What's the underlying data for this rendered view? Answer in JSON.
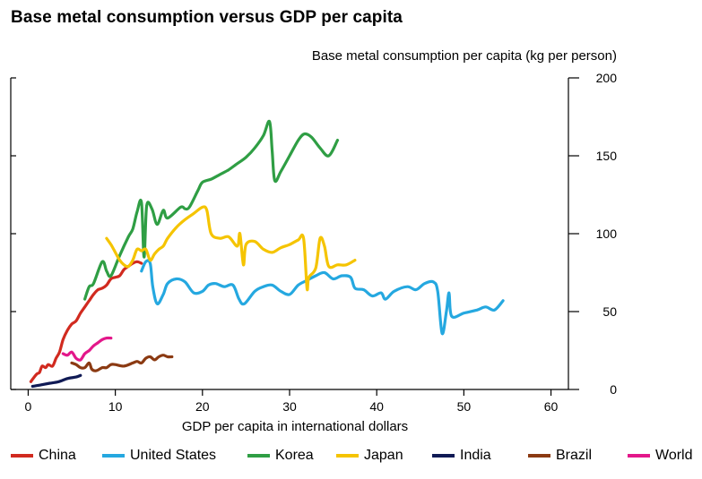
{
  "chart_data": {
    "type": "line",
    "title": "Base metal consumption versus GDP per capita",
    "xlabel": "GDP per capita in international dollars",
    "ylabel": "Base metal consumption per capita (kg per person)",
    "xlim": [
      -2,
      62
    ],
    "ylim": [
      0,
      200
    ],
    "xticks": [
      0,
      10,
      20,
      30,
      40,
      50,
      60
    ],
    "yticks": [
      0,
      50,
      100,
      150,
      200
    ],
    "y_axis_side": "right",
    "legend_position": "bottom",
    "series": [
      {
        "name": "China",
        "color": "#d12a1f",
        "points": [
          [
            0.3,
            5
          ],
          [
            0.7,
            8
          ],
          [
            1.0,
            10
          ],
          [
            1.3,
            11
          ],
          [
            1.6,
            15
          ],
          [
            2.0,
            14
          ],
          [
            2.3,
            16
          ],
          [
            2.8,
            15
          ],
          [
            3.2,
            20
          ],
          [
            3.6,
            24
          ],
          [
            4.0,
            32
          ],
          [
            4.5,
            38
          ],
          [
            5.0,
            42
          ],
          [
            5.5,
            44
          ],
          [
            6.0,
            49
          ],
          [
            6.5,
            53
          ],
          [
            7.0,
            57
          ],
          [
            7.5,
            61
          ],
          [
            8.0,
            64
          ],
          [
            8.5,
            65
          ],
          [
            9.0,
            67
          ],
          [
            9.5,
            71
          ],
          [
            10.0,
            72
          ],
          [
            10.5,
            73
          ],
          [
            11.0,
            77
          ],
          [
            11.5,
            79
          ],
          [
            12.0,
            81
          ],
          [
            12.5,
            82
          ],
          [
            13.0,
            81
          ]
        ]
      },
      {
        "name": "United States",
        "color": "#25a8e0",
        "points": [
          [
            13.0,
            76
          ],
          [
            13.5,
            82
          ],
          [
            14.0,
            81
          ],
          [
            14.3,
            66
          ],
          [
            14.8,
            55
          ],
          [
            15.5,
            61
          ],
          [
            16.0,
            68
          ],
          [
            17.0,
            71
          ],
          [
            18.0,
            69
          ],
          [
            19.0,
            62
          ],
          [
            20.0,
            63
          ],
          [
            20.7,
            67
          ],
          [
            21.5,
            68
          ],
          [
            22.5,
            66
          ],
          [
            23.5,
            67
          ],
          [
            24.2,
            58
          ],
          [
            24.8,
            55
          ],
          [
            26.0,
            63
          ],
          [
            27.0,
            66
          ],
          [
            28.0,
            67
          ],
          [
            29.0,
            63
          ],
          [
            30.0,
            61
          ],
          [
            31.0,
            67
          ],
          [
            32.0,
            70
          ],
          [
            33.0,
            73
          ],
          [
            34.0,
            75
          ],
          [
            35.0,
            71
          ],
          [
            36.0,
            73
          ],
          [
            37.0,
            72
          ],
          [
            37.5,
            65
          ],
          [
            38.5,
            64
          ],
          [
            39.5,
            60
          ],
          [
            40.5,
            62
          ],
          [
            41.0,
            58
          ],
          [
            42.0,
            63
          ],
          [
            43.5,
            66
          ],
          [
            44.5,
            64
          ],
          [
            45.5,
            68
          ],
          [
            46.5,
            69
          ],
          [
            47.0,
            63
          ],
          [
            47.5,
            36
          ],
          [
            48.0,
            50
          ],
          [
            48.3,
            62
          ],
          [
            48.6,
            47
          ],
          [
            50.0,
            49
          ],
          [
            51.5,
            51
          ],
          [
            52.5,
            53
          ],
          [
            53.5,
            51
          ],
          [
            54.5,
            57
          ]
        ]
      },
      {
        "name": "Korea",
        "color": "#2f9e44",
        "points": [
          [
            6.5,
            58
          ],
          [
            7.0,
            66
          ],
          [
            7.5,
            68
          ],
          [
            8.5,
            82
          ],
          [
            9.0,
            76
          ],
          [
            9.5,
            73
          ],
          [
            10.5,
            86
          ],
          [
            11.5,
            98
          ],
          [
            12.0,
            103
          ],
          [
            12.5,
            114
          ],
          [
            13.0,
            120
          ],
          [
            13.3,
            85
          ],
          [
            13.6,
            118
          ],
          [
            14.2,
            116
          ],
          [
            14.8,
            106
          ],
          [
            15.5,
            115
          ],
          [
            16.0,
            110
          ],
          [
            17.5,
            117
          ],
          [
            18.0,
            116
          ],
          [
            18.5,
            117
          ],
          [
            19.5,
            128
          ],
          [
            20.0,
            133
          ],
          [
            21.0,
            135
          ],
          [
            22.0,
            138
          ],
          [
            23.0,
            141
          ],
          [
            24.0,
            145
          ],
          [
            25.0,
            149
          ],
          [
            26.0,
            155
          ],
          [
            27.0,
            163
          ],
          [
            27.7,
            172
          ],
          [
            28.0,
            153
          ],
          [
            28.3,
            134
          ],
          [
            29.0,
            140
          ],
          [
            30.0,
            150
          ],
          [
            31.0,
            160
          ],
          [
            31.7,
            164
          ],
          [
            32.5,
            162
          ],
          [
            33.5,
            155
          ],
          [
            34.5,
            150
          ],
          [
            35.5,
            160
          ]
        ]
      },
      {
        "name": "Japan",
        "color": "#f5c400",
        "points": [
          [
            9.0,
            97
          ],
          [
            9.5,
            93
          ],
          [
            10.0,
            88
          ],
          [
            10.5,
            83
          ],
          [
            11.0,
            80
          ],
          [
            11.5,
            79
          ],
          [
            12.0,
            83
          ],
          [
            12.5,
            90
          ],
          [
            13.0,
            89
          ],
          [
            13.5,
            90
          ],
          [
            14.0,
            83
          ],
          [
            14.5,
            87
          ],
          [
            15.0,
            90
          ],
          [
            15.5,
            92
          ],
          [
            16.0,
            97
          ],
          [
            17.0,
            104
          ],
          [
            18.0,
            109
          ],
          [
            19.0,
            113
          ],
          [
            20.0,
            117
          ],
          [
            20.5,
            115
          ],
          [
            21.0,
            100
          ],
          [
            22.0,
            97
          ],
          [
            23.0,
            98
          ],
          [
            24.0,
            92
          ],
          [
            24.3,
            100
          ],
          [
            24.7,
            80
          ],
          [
            25.0,
            93
          ],
          [
            26.0,
            95
          ],
          [
            27.0,
            90
          ],
          [
            28.0,
            88
          ],
          [
            29.0,
            91
          ],
          [
            30.0,
            93
          ],
          [
            31.0,
            96
          ],
          [
            31.6,
            97
          ],
          [
            32.0,
            65
          ],
          [
            32.2,
            72
          ],
          [
            33.0,
            78
          ],
          [
            33.5,
            97
          ],
          [
            34.0,
            92
          ],
          [
            34.5,
            79
          ],
          [
            35.5,
            80
          ],
          [
            36.5,
            80
          ],
          [
            37.5,
            83
          ]
        ]
      },
      {
        "name": "India",
        "color": "#101a55",
        "points": [
          [
            0.5,
            2
          ],
          [
            1.5,
            3
          ],
          [
            2.5,
            4
          ],
          [
            3.5,
            5
          ],
          [
            4.5,
            7
          ],
          [
            5.5,
            8
          ],
          [
            6.0,
            9
          ]
        ]
      },
      {
        "name": "Brazil",
        "color": "#8b3a12",
        "points": [
          [
            5.0,
            17
          ],
          [
            5.5,
            16
          ],
          [
            6.0,
            14
          ],
          [
            6.5,
            14
          ],
          [
            7.0,
            17
          ],
          [
            7.3,
            13
          ],
          [
            7.8,
            12
          ],
          [
            8.5,
            14
          ],
          [
            9.0,
            14
          ],
          [
            9.5,
            16
          ],
          [
            10.0,
            16
          ],
          [
            11.0,
            15
          ],
          [
            12.0,
            17
          ],
          [
            12.5,
            18
          ],
          [
            13.0,
            17
          ],
          [
            13.5,
            20
          ],
          [
            14.0,
            21
          ],
          [
            14.5,
            19
          ],
          [
            15.0,
            21
          ],
          [
            15.5,
            22
          ],
          [
            16.0,
            21
          ],
          [
            16.5,
            21
          ]
        ]
      },
      {
        "name": "World",
        "color": "#e3178a",
        "points": [
          [
            4.0,
            23
          ],
          [
            4.5,
            22
          ],
          [
            5.0,
            24
          ],
          [
            5.5,
            20
          ],
          [
            6.0,
            19
          ],
          [
            6.5,
            23
          ],
          [
            7.0,
            25
          ],
          [
            7.5,
            28
          ],
          [
            8.0,
            30
          ],
          [
            8.5,
            32
          ],
          [
            9.0,
            33
          ],
          [
            9.5,
            33
          ]
        ]
      }
    ]
  }
}
